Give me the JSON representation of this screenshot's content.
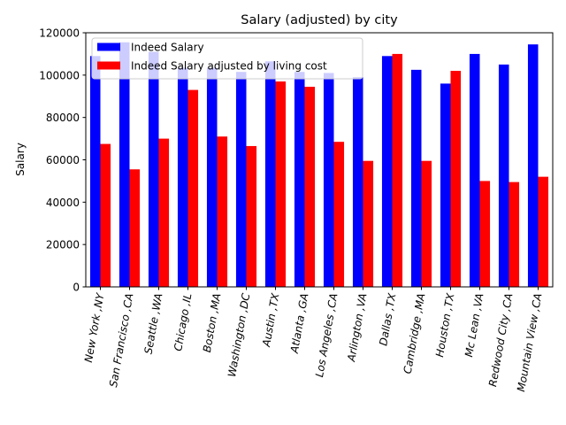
{
  "chart_data": {
    "type": "bar",
    "title": "Salary (adjusted) by city",
    "xlabel": "",
    "ylabel": "Salary",
    "ylim": [
      0,
      120000
    ],
    "yticks": [
      0,
      20000,
      40000,
      60000,
      80000,
      100000,
      120000
    ],
    "grid": false,
    "legend_position": "top-left",
    "categories": [
      "New York ,NY",
      "San Francisco ,CA",
      "Seattle ,WA",
      "Chicago ,IL",
      "Boston ,MA",
      "Washington ,DC",
      "Austin ,TX",
      "Atlanta ,GA",
      "Los Angeles ,CA",
      "Arlington ,VA",
      "Dallas ,TX",
      "Cambridge ,MA",
      "Houston ,TX",
      "Mc Lean ,VA",
      "Redwood City ,CA",
      "Mountain View ,CA"
    ],
    "series": [
      {
        "name": "Indeed Salary",
        "color": "#0000ff",
        "values": [
          109000,
          115500,
          111000,
          103500,
          103500,
          101500,
          106500,
          101500,
          101000,
          99000,
          109000,
          102500,
          96000,
          110000,
          105000,
          114500
        ]
      },
      {
        "name": "Indeed Salary adjusted by living cost",
        "color": "#ff0000",
        "values": [
          67500,
          55500,
          70000,
          93000,
          71000,
          66500,
          97000,
          94500,
          68500,
          59500,
          110000,
          59500,
          102000,
          50000,
          49500,
          52000
        ]
      }
    ]
  }
}
